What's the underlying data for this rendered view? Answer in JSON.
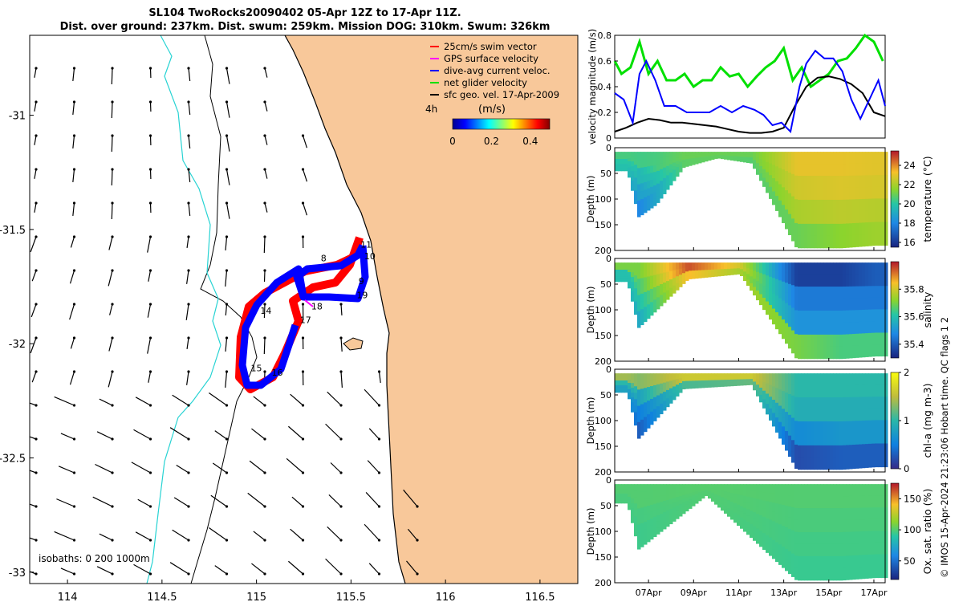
{
  "title": {
    "line1": "SL104 TwoRocks20090402 05-Apr 12Z to 17-Apr 11Z.",
    "line2": "Dist. over ground: 237km. Dist. swum: 259km. Mission DOG: 310km. Swum: 326km"
  },
  "credit": "© IMOS 15-Apr-2024 21:23:06 Hobart time. QC flags 1  2",
  "colors": {
    "land": "#f8c89a",
    "isobath_shallow": "#27d3d3",
    "swim": "#ff0000",
    "gps": "#ff00ff",
    "dive": "#0000ff",
    "net": "#00e000",
    "sfc": "#000000"
  },
  "chart_data": [
    {
      "type": "map",
      "x_ticks": [
        "114",
        "114.5",
        "115",
        "115.5",
        "116",
        "116.5"
      ],
      "y_ticks": [
        "-31",
        "-31.5",
        "-32",
        "-32.5",
        "-33"
      ],
      "xlim": [
        113.8,
        116.7
      ],
      "ylim": [
        -33.05,
        -30.65
      ],
      "legend": [
        {
          "label": "25cm/s swim vector",
          "color": "#ff0000"
        },
        {
          "label": "GPS surface velocity",
          "color": "#ff00ff"
        },
        {
          "label": "dive-avg current veloc.",
          "color": "#0000ff"
        },
        {
          "label": "net glider velocity",
          "color": "#00e000"
        },
        {
          "label": "sfc geo. vel. 17-Apr-2009",
          "color": "#000000"
        }
      ],
      "legend_placement": "top-right",
      "colorbar": {
        "label": "(m/s)",
        "note": "4h",
        "ticks": [
          "0",
          "0.2",
          "0.4"
        ],
        "range": [
          0,
          0.5
        ]
      },
      "isobaths_label": "isobaths: 0   200  1000m",
      "waypoints": [
        {
          "label": "8",
          "lon": 115.34,
          "lat": -31.64
        },
        {
          "label": "9",
          "lon": 115.54,
          "lat": -31.74
        },
        {
          "label": "10",
          "lon": 115.57,
          "lat": -31.63
        },
        {
          "label": "11",
          "lon": 115.55,
          "lat": -31.58
        },
        {
          "label": "14",
          "lon": 115.02,
          "lat": -31.87
        },
        {
          "label": "15",
          "lon": 114.97,
          "lat": -32.12
        },
        {
          "label": "16",
          "lon": 115.08,
          "lat": -32.14
        },
        {
          "label": "17",
          "lon": 115.23,
          "lat": -31.91
        },
        {
          "label": "18",
          "lon": 115.29,
          "lat": -31.85
        },
        {
          "label": "19",
          "lon": 115.53,
          "lat": -31.8
        }
      ]
    },
    {
      "type": "line",
      "ylabel": "velocity magnitude (m/s)",
      "ylim": [
        0,
        0.8
      ],
      "y_ticks": [
        "0",
        "0.2",
        "0.4",
        "0.6",
        "0.8"
      ],
      "x_ticks": [
        "07Apr",
        "09Apr",
        "11Apr",
        "13Apr",
        "15Apr",
        "17Apr"
      ],
      "xlim_days": [
        5.5,
        17.5
      ],
      "series": [
        {
          "color": "#0000ff",
          "x": [
            5.5,
            5.9,
            6.3,
            6.6,
            6.9,
            7.3,
            7.7,
            8.2,
            8.7,
            9.2,
            9.7,
            10.2,
            10.7,
            11.2,
            11.7,
            12.1,
            12.5,
            12.9,
            13.3,
            13.7,
            14.0,
            14.4,
            14.8,
            15.2,
            15.6,
            16.0,
            16.4,
            16.8,
            17.2,
            17.5
          ],
          "y": [
            0.35,
            0.3,
            0.12,
            0.5,
            0.6,
            0.45,
            0.25,
            0.25,
            0.2,
            0.2,
            0.2,
            0.25,
            0.2,
            0.25,
            0.22,
            0.18,
            0.1,
            0.12,
            0.05,
            0.4,
            0.58,
            0.68,
            0.62,
            0.62,
            0.52,
            0.3,
            0.15,
            0.3,
            0.45,
            0.25
          ]
        },
        {
          "color": "#000000",
          "x": [
            5.5,
            6.0,
            6.5,
            7.0,
            7.5,
            8.0,
            8.5,
            9.0,
            9.5,
            10.0,
            10.5,
            11.0,
            11.5,
            12.0,
            12.5,
            13.0,
            13.5,
            14.0,
            14.5,
            15.0,
            15.5,
            16.0,
            16.5,
            17.0,
            17.5
          ],
          "y": [
            0.05,
            0.08,
            0.12,
            0.15,
            0.14,
            0.12,
            0.12,
            0.11,
            0.1,
            0.09,
            0.07,
            0.05,
            0.04,
            0.04,
            0.05,
            0.08,
            0.25,
            0.4,
            0.47,
            0.48,
            0.46,
            0.42,
            0.35,
            0.2,
            0.17
          ]
        },
        {
          "color": "#00e000",
          "x": [
            5.5,
            5.8,
            6.2,
            6.6,
            7.0,
            7.4,
            7.8,
            8.2,
            8.6,
            9.0,
            9.4,
            9.8,
            10.2,
            10.6,
            11.0,
            11.4,
            11.8,
            12.2,
            12.6,
            13.0,
            13.4,
            13.8,
            14.2,
            14.6,
            15.0,
            15.4,
            15.8,
            16.2,
            16.6,
            17.0,
            17.4
          ],
          "y": [
            0.6,
            0.5,
            0.55,
            0.75,
            0.5,
            0.6,
            0.45,
            0.45,
            0.5,
            0.4,
            0.45,
            0.45,
            0.55,
            0.48,
            0.5,
            0.4,
            0.48,
            0.55,
            0.6,
            0.7,
            0.45,
            0.55,
            0.4,
            0.45,
            0.5,
            0.6,
            0.62,
            0.7,
            0.8,
            0.75,
            0.6
          ]
        }
      ]
    },
    {
      "type": "heatmap",
      "ylabel": "Depth (m)",
      "colorbar_label": "temperature (°C)",
      "y_ticks": [
        "0",
        "50",
        "100",
        "150",
        "200"
      ],
      "colorbar_ticks": [
        "16",
        "18",
        "20",
        "22",
        "24"
      ],
      "clim": [
        15.5,
        25.5
      ],
      "profiles": [
        {
          "day": 6.0,
          "max_depth": 45,
          "values": [
            20.5,
            20.0,
            19.8
          ]
        },
        {
          "day": 6.5,
          "max_depth": 135,
          "values": [
            20.4,
            19.5,
            18.8,
            18.0
          ]
        },
        {
          "day": 7.3,
          "max_depth": 110,
          "values": [
            20.5,
            19.8,
            19.0
          ]
        },
        {
          "day": 8.5,
          "max_depth": 38,
          "values": [
            21.0,
            20.8
          ]
        },
        {
          "day": 10.0,
          "max_depth": 20,
          "values": [
            21.0,
            20.9
          ]
        },
        {
          "day": 11.5,
          "max_depth": 30,
          "values": [
            21.0,
            20.7
          ]
        },
        {
          "day": 13.5,
          "max_depth": 195,
          "values": [
            23.0,
            22.6,
            22.0,
            21.0
          ]
        },
        {
          "day": 15.5,
          "max_depth": 195,
          "values": [
            23.0,
            22.8,
            22.3,
            21.5
          ]
        },
        {
          "day": 17.0,
          "max_depth": 190,
          "values": [
            22.9,
            22.7,
            22.2,
            21.8
          ]
        }
      ]
    },
    {
      "type": "heatmap",
      "ylabel": "Depth (m)",
      "colorbar_label": "salinity",
      "y_ticks": [
        "0",
        "50",
        "100",
        "150",
        "200"
      ],
      "colorbar_ticks": [
        "35.4",
        "35.6",
        "35.8"
      ],
      "clim": [
        35.3,
        36.0
      ],
      "profiles": [
        {
          "day": 6.0,
          "max_depth": 45,
          "values": [
            35.7,
            35.6,
            35.6
          ]
        },
        {
          "day": 6.5,
          "max_depth": 135,
          "values": [
            35.7,
            35.65,
            35.6,
            35.55
          ]
        },
        {
          "day": 8.7,
          "max_depth": 40,
          "values": [
            35.95,
            35.85
          ]
        },
        {
          "day": 11.0,
          "max_depth": 30,
          "values": [
            35.8,
            35.75
          ]
        },
        {
          "day": 13.5,
          "max_depth": 195,
          "values": [
            35.35,
            35.45,
            35.5,
            35.7
          ]
        },
        {
          "day": 15.5,
          "max_depth": 195,
          "values": [
            35.35,
            35.45,
            35.5,
            35.65
          ]
        },
        {
          "day": 17.0,
          "max_depth": 190,
          "values": [
            35.4,
            35.45,
            35.5,
            35.65
          ]
        }
      ]
    },
    {
      "type": "heatmap",
      "ylabel": "Depth (m)",
      "colorbar_label": "chl-a (mg m-3)",
      "y_ticks": [
        "0",
        "50",
        "100",
        "150",
        "200"
      ],
      "colorbar_ticks": [
        "0",
        "1",
        "2"
      ],
      "clim": [
        0,
        2
      ],
      "profiles": [
        {
          "day": 6.0,
          "max_depth": 45,
          "values": [
            1.4,
            1.0,
            0.8
          ]
        },
        {
          "day": 6.5,
          "max_depth": 135,
          "values": [
            1.3,
            0.8,
            0.5,
            0.3
          ]
        },
        {
          "day": 8.5,
          "max_depth": 38,
          "values": [
            1.6,
            1.1
          ]
        },
        {
          "day": 11.5,
          "max_depth": 30,
          "values": [
            1.6,
            1.2
          ]
        },
        {
          "day": 13.5,
          "max_depth": 195,
          "values": [
            1.0,
            0.9,
            0.6,
            0.2
          ]
        },
        {
          "day": 15.5,
          "max_depth": 195,
          "values": [
            1.0,
            0.9,
            0.7,
            0.3
          ]
        },
        {
          "day": 17.0,
          "max_depth": 190,
          "values": [
            1.0,
            0.9,
            0.7,
            0.3
          ]
        }
      ]
    },
    {
      "type": "heatmap",
      "ylabel": "Depth (m)",
      "colorbar_label": "Ox. sat. ratio (%)",
      "y_ticks": [
        "0",
        "50",
        "100",
        "150",
        "200"
      ],
      "colorbar_ticks": [
        "50",
        "100",
        "150"
      ],
      "clim": [
        20,
        175
      ],
      "x_ticks": [
        "07Apr",
        "09Apr",
        "11Apr",
        "13Apr",
        "15Apr",
        "17Apr"
      ],
      "profiles": [
        {
          "day": 6.0,
          "max_depth": 45,
          "values": [
            100,
            98
          ]
        },
        {
          "day": 6.5,
          "max_depth": 135,
          "values": [
            100,
            97,
            95
          ]
        },
        {
          "day": 9.5,
          "max_depth": 30,
          "values": [
            101,
            100
          ]
        },
        {
          "day": 13.5,
          "max_depth": 195,
          "values": [
            100,
            98,
            96,
            94
          ]
        },
        {
          "day": 15.5,
          "max_depth": 195,
          "values": [
            100,
            98,
            96,
            94
          ]
        },
        {
          "day": 17.0,
          "max_depth": 190,
          "values": [
            100,
            98,
            96,
            94
          ]
        }
      ]
    }
  ]
}
